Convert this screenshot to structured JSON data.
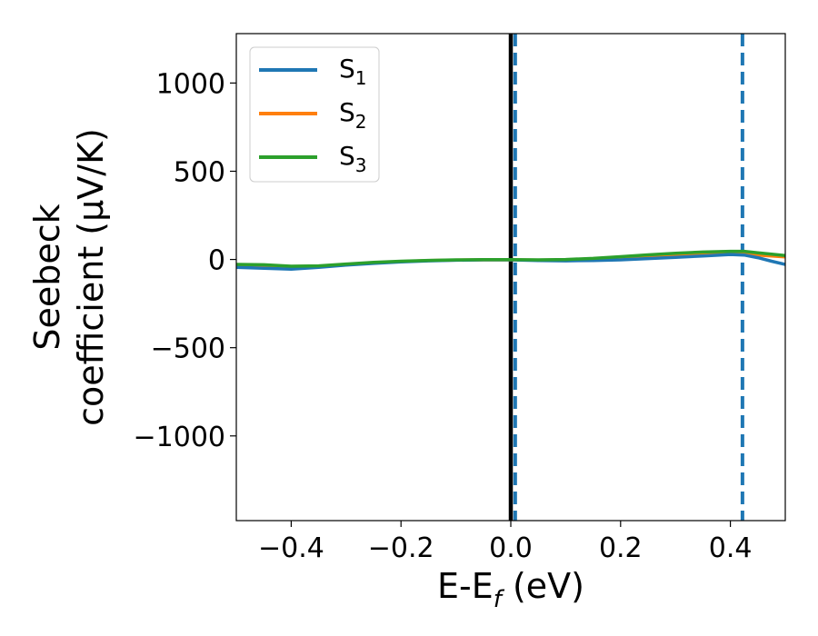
{
  "chart_data": {
    "type": "line",
    "xlabel": {
      "main": "E-E",
      "sub": "f",
      "unit": " (eV)"
    },
    "ylabel": {
      "line1": "Seebeck",
      "line2": "coefficient  (μV/K)"
    },
    "xlim": [
      -0.5,
      0.5
    ],
    "ylim": [
      -1480,
      1280
    ],
    "xticks": [
      -0.4,
      -0.2,
      0.0,
      0.2,
      0.4
    ],
    "xtick_labels": [
      "−0.4",
      "−0.2",
      "0.0",
      "0.2",
      "0.4"
    ],
    "yticks": [
      1000,
      500,
      0,
      -500,
      -1000
    ],
    "ytick_labels": [
      "1000",
      "500",
      "0",
      "−500",
      "−1000"
    ],
    "grid": false,
    "legend_position": "top-left",
    "x": [
      -0.5,
      -0.45,
      -0.4,
      -0.35,
      -0.3,
      -0.25,
      -0.2,
      -0.15,
      -0.1,
      -0.05,
      0.0,
      0.05,
      0.1,
      0.15,
      0.2,
      0.25,
      0.3,
      0.35,
      0.4,
      0.425,
      0.45,
      0.475,
      0.5
    ],
    "series": [
      {
        "name": "S",
        "subscript": "1",
        "color": "#1f77b4",
        "values": [
          -45,
          -50,
          -55,
          -45,
          -32,
          -22,
          -14,
          -8,
          -4,
          -2,
          -2,
          -6,
          -8,
          -6,
          -2,
          5,
          12,
          20,
          28,
          25,
          10,
          -10,
          -28
        ]
      },
      {
        "name": "S",
        "subscript": "2",
        "color": "#ff7f0e",
        "values": [
          -40,
          -40,
          -40,
          -38,
          -30,
          -20,
          -12,
          -6,
          -3,
          -2,
          -2,
          -3,
          -2,
          4,
          12,
          20,
          28,
          34,
          35,
          33,
          25,
          20,
          15
        ]
      },
      {
        "name": "S",
        "subscript": "3",
        "color": "#2ca02c",
        "values": [
          -28,
          -30,
          -38,
          -36,
          -26,
          -16,
          -10,
          -5,
          -2,
          -1,
          -1,
          -2,
          0,
          6,
          16,
          26,
          35,
          42,
          46,
          46,
          38,
          30,
          22
        ]
      }
    ],
    "vlines": [
      {
        "x": 0.0,
        "style": "solid",
        "color": "#000000"
      },
      {
        "x": 0.008,
        "style": "dashed",
        "color": "#1f77b4"
      },
      {
        "x": 0.422,
        "style": "dashed",
        "color": "#1f77b4"
      }
    ]
  }
}
